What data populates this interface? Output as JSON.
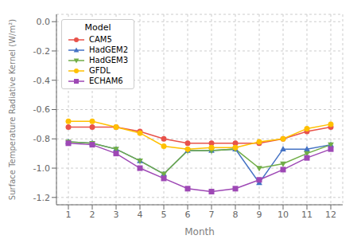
{
  "chart_data": {
    "type": "line",
    "xlabel": "Month",
    "ylabel": "Surface Temperature Radiative Kernel (W/m²)",
    "x": [
      1,
      2,
      3,
      4,
      5,
      6,
      7,
      8,
      9,
      10,
      11,
      12
    ],
    "series": [
      {
        "name": "CAM5",
        "color": "#e8524a",
        "marker": "circle",
        "values": [
          -0.72,
          -0.72,
          -0.72,
          -0.75,
          -0.8,
          -0.83,
          -0.83,
          -0.83,
          -0.83,
          -0.8,
          -0.75,
          -0.72
        ]
      },
      {
        "name": "HadGEM2",
        "color": "#4472c4",
        "marker": "triangle_up",
        "values": [
          -0.82,
          -0.83,
          -0.87,
          -0.95,
          -1.04,
          -0.88,
          -0.88,
          -0.87,
          -1.1,
          -0.87,
          -0.87,
          -0.84
        ]
      },
      {
        "name": "HadGEM3",
        "color": "#70ad47",
        "marker": "triangle_down",
        "values": [
          -0.82,
          -0.83,
          -0.87,
          -0.95,
          -1.04,
          -0.88,
          -0.88,
          -0.87,
          -1.0,
          -0.97,
          -0.9,
          -0.84
        ]
      },
      {
        "name": "GFDL",
        "color": "#ffc000",
        "marker": "circle",
        "values": [
          -0.68,
          -0.68,
          -0.72,
          -0.76,
          -0.85,
          -0.87,
          -0.86,
          -0.86,
          -0.82,
          -0.8,
          -0.73,
          -0.7
        ]
      },
      {
        "name": "ECHAM6",
        "color": "#9e48b5",
        "marker": "square",
        "values": [
          -0.83,
          -0.84,
          -0.9,
          -1.0,
          -1.07,
          -1.14,
          -1.16,
          -1.14,
          -1.08,
          -1.01,
          -0.93,
          -0.87
        ]
      }
    ],
    "xlim": [
      0.5,
      12.5
    ],
    "xticks": [
      1,
      2,
      3,
      4,
      5,
      6,
      7,
      8,
      9,
      10,
      11,
      12
    ],
    "ylim": [
      -1.25,
      0.05
    ],
    "yticks": [
      {
        "value": 0.0,
        "label": "0.0"
      },
      -0.2,
      -0.4,
      -0.6,
      -0.8,
      {
        "value": -1.0,
        "label": "-1.0"
      },
      -1.2
    ],
    "grid": true,
    "legend": "upper left",
    "legend_title": "Model"
  }
}
